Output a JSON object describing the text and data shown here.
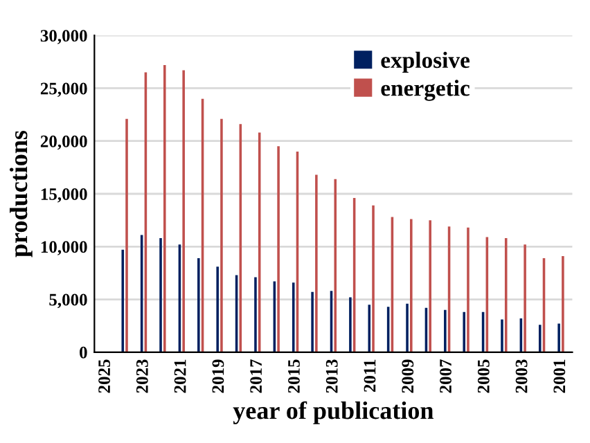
{
  "chart_data": {
    "type": "bar",
    "xlabel": "year of publication",
    "ylabel": "productions",
    "categories": [
      "2025",
      null,
      "2023",
      null,
      "2021",
      null,
      "2019",
      null,
      "2017",
      null,
      "2015",
      null,
      "2013",
      null,
      "2011",
      null,
      "2009",
      null,
      "2007",
      null,
      "2005",
      null,
      "2003",
      null,
      "2001"
    ],
    "series": [
      {
        "name": "explosive",
        "color": "#002060",
        "values": [
          null,
          9700,
          11100,
          10800,
          10200,
          8900,
          8100,
          7300,
          7100,
          6700,
          6600,
          5700,
          5800,
          5200,
          4500,
          4300,
          4600,
          4200,
          4000,
          3800,
          3800,
          3100,
          3200,
          2600,
          2700
        ]
      },
      {
        "name": "energetic",
        "color": "#c0504d",
        "values": [
          null,
          22100,
          26500,
          27200,
          26700,
          24000,
          22100,
          21600,
          20800,
          19500,
          19000,
          16800,
          16400,
          14600,
          13900,
          12800,
          12600,
          12500,
          11900,
          11800,
          10900,
          10800,
          10200,
          8900,
          9100
        ]
      }
    ],
    "ylim": [
      0,
      30000
    ],
    "yticks": [
      0,
      {
        "value": 5000,
        "label": "5,000"
      },
      {
        "value": 10000,
        "label": "10,000"
      },
      {
        "value": 15000,
        "label": "15,000"
      },
      {
        "value": 20000,
        "label": "20,000"
      },
      {
        "value": 25000,
        "label": "25,000"
      },
      {
        "value": 30000,
        "label": "30,000"
      }
    ],
    "grid": "y",
    "legend": "top right"
  }
}
